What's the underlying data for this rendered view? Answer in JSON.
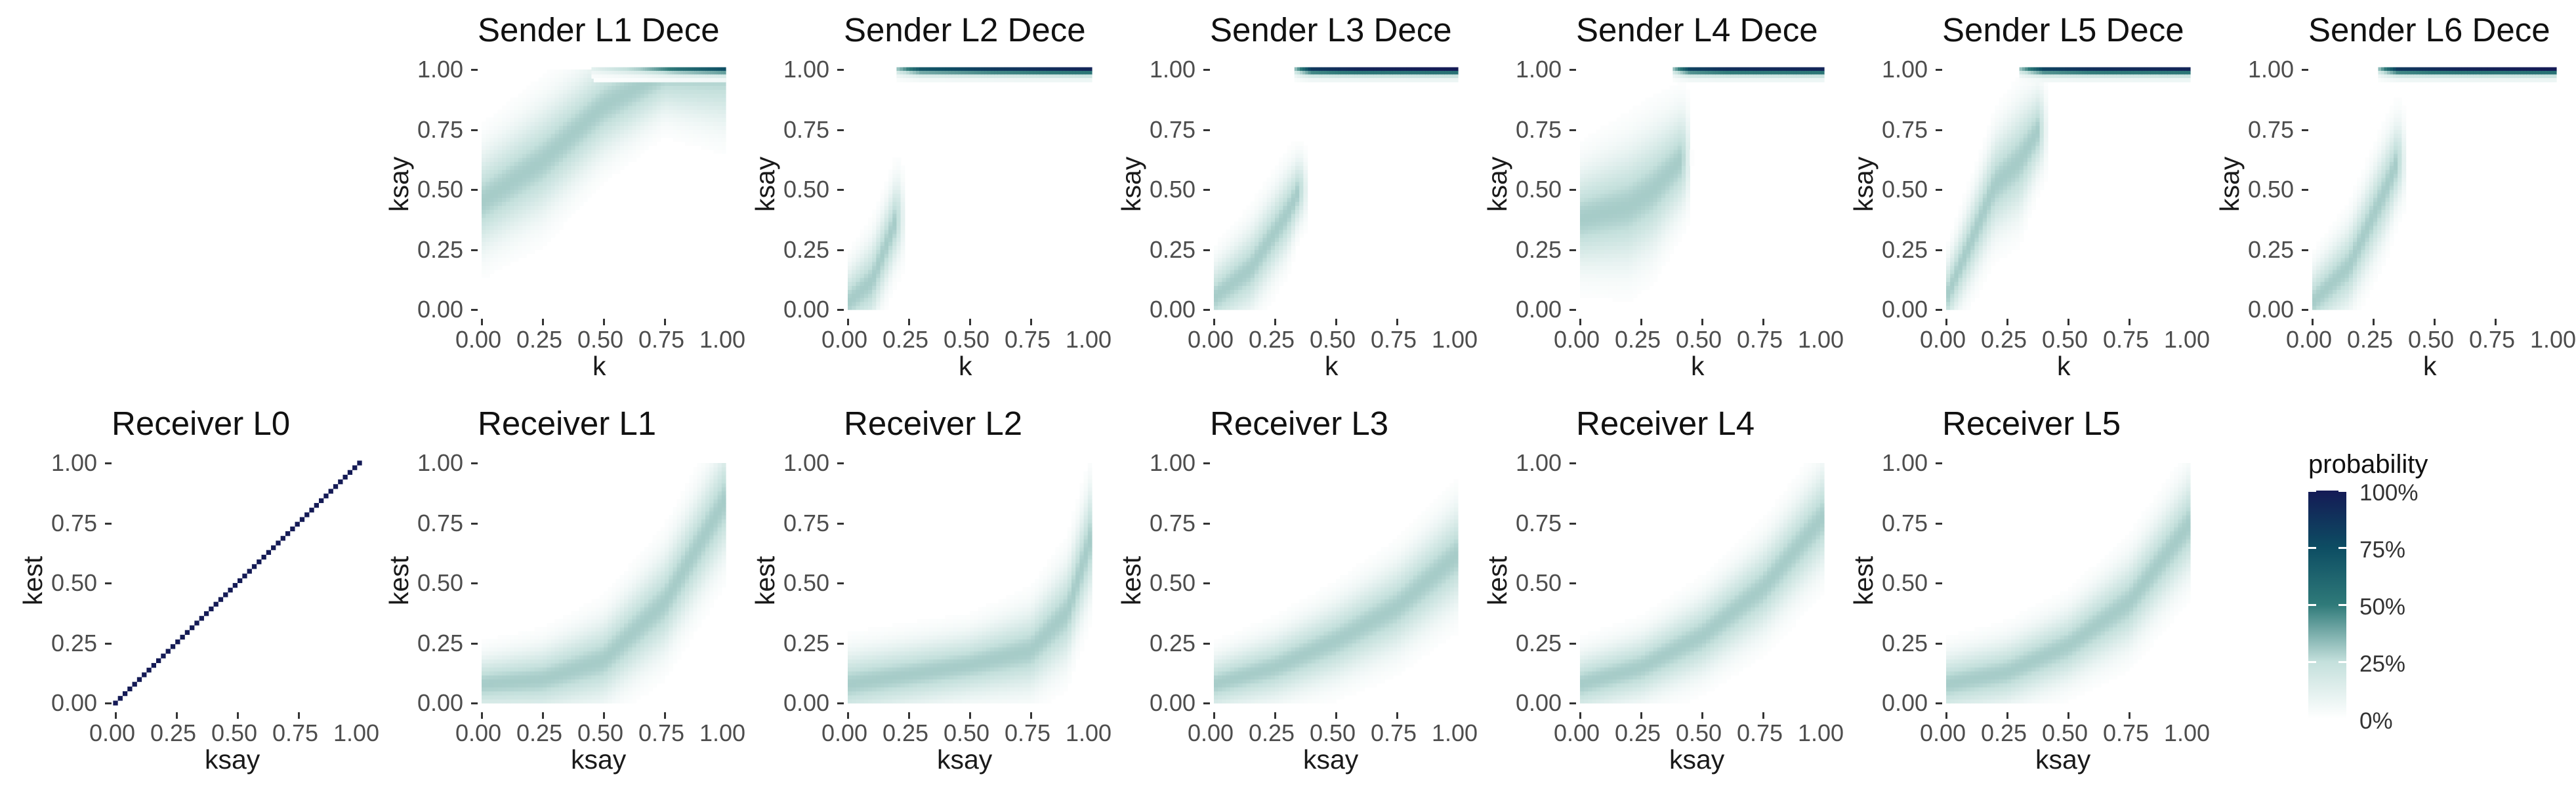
{
  "chart_data": [
    {
      "type": "heatmap",
      "title": "Sender L1 Dece",
      "xlabel": "k",
      "ylabel": "ksay",
      "x_ticks": [
        "0.00",
        "0.25",
        "0.50",
        "0.75",
        "1.00"
      ],
      "y_ticks": [
        "0.00",
        "0.25",
        "0.50",
        "0.75",
        "1.00"
      ],
      "xlim": [
        0,
        1
      ],
      "ylim": [
        0,
        1
      ],
      "ridge": [
        [
          0.0,
          0.45,
          0.18
        ],
        [
          0.25,
          0.62,
          0.2
        ],
        [
          0.5,
          0.85,
          0.18
        ],
        [
          0.75,
          0.99,
          0.15
        ],
        [
          1.0,
          1.0,
          0.2
        ]
      ],
      "top_band": {
        "x_from": 0.45,
        "x_to": 1.0,
        "peak": [
          [
            0.45,
            0.12
          ],
          [
            0.65,
            0.3
          ],
          [
            0.8,
            0.55
          ],
          [
            1.0,
            0.75
          ]
        ]
      }
    },
    {
      "type": "heatmap",
      "title": "Sender L2 Dece",
      "xlabel": "k",
      "ylabel": "ksay",
      "x_ticks": [
        "0.00",
        "0.25",
        "0.50",
        "0.75",
        "1.00"
      ],
      "y_ticks": [
        "0.00",
        "0.25",
        "0.50",
        "0.75",
        "1.00"
      ],
      "xlim": [
        0,
        1
      ],
      "ylim": [
        0,
        1
      ],
      "ridge": [
        [
          0.0,
          0.03,
          0.12
        ],
        [
          0.1,
          0.12,
          0.15
        ],
        [
          0.2,
          0.38,
          0.15
        ]
      ],
      "ridge_x_max": 0.2,
      "top_band": {
        "x_from": 0.2,
        "x_to": 1.0,
        "peak": [
          [
            0.2,
            0.3
          ],
          [
            0.3,
            0.7
          ],
          [
            0.6,
            0.85
          ],
          [
            1.0,
            0.95
          ]
        ]
      }
    },
    {
      "type": "heatmap",
      "title": "Sender L3 Dece",
      "xlabel": "k",
      "ylabel": "ksay",
      "x_ticks": [
        "0.00",
        "0.25",
        "0.50",
        "0.75",
        "1.00"
      ],
      "y_ticks": [
        "0.00",
        "0.25",
        "0.50",
        "0.75",
        "1.00"
      ],
      "xlim": [
        0,
        1
      ],
      "ylim": [
        0,
        1
      ],
      "ridge": [
        [
          0.0,
          0.05,
          0.12
        ],
        [
          0.15,
          0.17,
          0.15
        ],
        [
          0.3,
          0.4,
          0.15
        ],
        [
          0.35,
          0.5,
          0.12
        ]
      ],
      "ridge_x_max": 0.35,
      "top_band": {
        "x_from": 0.33,
        "x_to": 1.0,
        "peak": [
          [
            0.33,
            0.3
          ],
          [
            0.4,
            0.85
          ],
          [
            0.6,
            0.95
          ],
          [
            1.0,
            1.0
          ]
        ]
      }
    },
    {
      "type": "heatmap",
      "title": "Sender L4 Dece",
      "xlabel": "k",
      "ylabel": "ksay",
      "x_ticks": [
        "0.00",
        "0.25",
        "0.50",
        "0.75",
        "1.00"
      ],
      "y_ticks": [
        "0.00",
        "0.25",
        "0.50",
        "0.75",
        "1.00"
      ],
      "xlim": [
        0,
        1
      ],
      "ylim": [
        0,
        1
      ],
      "ridge": [
        [
          0.0,
          0.38,
          0.18
        ],
        [
          0.2,
          0.43,
          0.22
        ],
        [
          0.3,
          0.5,
          0.22
        ],
        [
          0.42,
          0.63,
          0.18
        ]
      ],
      "ridge_x_max": 0.42,
      "top_band": {
        "x_from": 0.38,
        "x_to": 1.0,
        "peak": [
          [
            0.38,
            0.3
          ],
          [
            0.45,
            0.8
          ],
          [
            0.6,
            0.9
          ],
          [
            1.0,
            0.95
          ]
        ]
      }
    },
    {
      "type": "heatmap",
      "title": "Sender L5 Dece",
      "xlabel": "k",
      "ylabel": "ksay",
      "x_ticks": [
        "0.00",
        "0.25",
        "0.50",
        "0.75",
        "1.00"
      ],
      "y_ticks": [
        "0.00",
        "0.25",
        "0.50",
        "0.75",
        "1.00"
      ],
      "xlim": [
        0,
        1
      ],
      "ylim": [
        0,
        1
      ],
      "ridge": [
        [
          0.0,
          0.05,
          0.12
        ],
        [
          0.1,
          0.28,
          0.15
        ],
        [
          0.2,
          0.52,
          0.18
        ],
        [
          0.3,
          0.62,
          0.2
        ],
        [
          0.38,
          0.75,
          0.15
        ]
      ],
      "ridge_x_max": 0.38,
      "top_band": {
        "x_from": 0.3,
        "x_to": 1.0,
        "peak": [
          [
            0.3,
            0.3
          ],
          [
            0.4,
            0.8
          ],
          [
            0.6,
            0.9
          ],
          [
            1.0,
            0.95
          ]
        ]
      }
    },
    {
      "type": "heatmap",
      "title": "Sender L6 Dece",
      "xlabel": "k",
      "ylabel": "ksay",
      "x_ticks": [
        "0.00",
        "0.25",
        "0.50",
        "0.75",
        "1.00"
      ],
      "y_ticks": [
        "0.00",
        "0.25",
        "0.50",
        "0.75",
        "1.00"
      ],
      "xlim": [
        0,
        1
      ],
      "ylim": [
        0,
        1
      ],
      "ridge": [
        [
          0.0,
          0.03,
          0.12
        ],
        [
          0.15,
          0.18,
          0.15
        ],
        [
          0.3,
          0.5,
          0.17
        ],
        [
          0.35,
          0.62,
          0.15
        ]
      ],
      "ridge_x_max": 0.35,
      "top_band": {
        "x_from": 0.27,
        "x_to": 1.0,
        "peak": [
          [
            0.27,
            0.3
          ],
          [
            0.35,
            0.85
          ],
          [
            0.6,
            0.95
          ],
          [
            1.0,
            1.0
          ]
        ]
      }
    },
    {
      "type": "heatmap",
      "title": "Receiver L0",
      "xlabel": "ksay",
      "ylabel": "kest",
      "x_ticks": [
        "0.00",
        "0.25",
        "0.50",
        "0.75",
        "1.00"
      ],
      "y_ticks": [
        "0.00",
        "0.25",
        "0.50",
        "0.75",
        "1.00"
      ],
      "xlim": [
        0,
        1
      ],
      "ylim": [
        0,
        1
      ],
      "diagonal": {
        "probability": 1.0
      }
    },
    {
      "type": "heatmap",
      "title": "Receiver L1",
      "xlabel": "ksay",
      "ylabel": "kest",
      "x_ticks": [
        "0.00",
        "0.25",
        "0.50",
        "0.75",
        "1.00"
      ],
      "y_ticks": [
        "0.00",
        "0.25",
        "0.50",
        "0.75",
        "1.00"
      ],
      "xlim": [
        0,
        1
      ],
      "ylim": [
        0,
        1
      ],
      "ridge": [
        [
          0.0,
          0.08,
          0.1
        ],
        [
          0.25,
          0.1,
          0.12
        ],
        [
          0.5,
          0.18,
          0.15
        ],
        [
          0.75,
          0.42,
          0.18
        ],
        [
          1.0,
          0.85,
          0.2
        ]
      ]
    },
    {
      "type": "heatmap",
      "title": "Receiver L2",
      "xlabel": "ksay",
      "ylabel": "kest",
      "x_ticks": [
        "0.00",
        "0.25",
        "0.50",
        "0.75",
        "1.00"
      ],
      "y_ticks": [
        "0.00",
        "0.25",
        "0.50",
        "0.75",
        "1.00"
      ],
      "xlim": [
        0,
        1
      ],
      "ylim": [
        0,
        1
      ],
      "ridge": [
        [
          0.0,
          0.08,
          0.12
        ],
        [
          0.25,
          0.12,
          0.12
        ],
        [
          0.5,
          0.16,
          0.12
        ],
        [
          0.75,
          0.22,
          0.15
        ],
        [
          0.9,
          0.38,
          0.18
        ],
        [
          1.0,
          0.7,
          0.2
        ]
      ]
    },
    {
      "type": "heatmap",
      "title": "Receiver L3",
      "xlabel": "ksay",
      "ylabel": "kest",
      "x_ticks": [
        "0.00",
        "0.25",
        "0.50",
        "0.75",
        "1.00"
      ],
      "y_ticks": [
        "0.00",
        "0.25",
        "0.50",
        "0.75",
        "1.00"
      ],
      "xlim": [
        0,
        1
      ],
      "ylim": [
        0,
        1
      ],
      "ridge": [
        [
          0.0,
          0.08,
          0.1
        ],
        [
          0.25,
          0.15,
          0.12
        ],
        [
          0.5,
          0.26,
          0.14
        ],
        [
          0.75,
          0.4,
          0.16
        ],
        [
          1.0,
          0.62,
          0.18
        ]
      ]
    },
    {
      "type": "heatmap",
      "title": "Receiver L4",
      "xlabel": "ksay",
      "ylabel": "kest",
      "x_ticks": [
        "0.00",
        "0.25",
        "0.50",
        "0.75",
        "1.00"
      ],
      "y_ticks": [
        "0.00",
        "0.25",
        "0.50",
        "0.75",
        "1.00"
      ],
      "xlim": [
        0,
        1
      ],
      "ylim": [
        0,
        1
      ],
      "ridge": [
        [
          0.0,
          0.08,
          0.11
        ],
        [
          0.25,
          0.15,
          0.12
        ],
        [
          0.5,
          0.28,
          0.14
        ],
        [
          0.75,
          0.48,
          0.16
        ],
        [
          1.0,
          0.78,
          0.18
        ]
      ]
    },
    {
      "type": "heatmap",
      "title": "Receiver L5",
      "xlabel": "ksay",
      "ylabel": "kest",
      "x_ticks": [
        "0.00",
        "0.25",
        "0.50",
        "0.75",
        "1.00"
      ],
      "y_ticks": [
        "0.00",
        "0.25",
        "0.50",
        "0.75",
        "1.00"
      ],
      "xlim": [
        0,
        1
      ],
      "ylim": [
        0,
        1
      ],
      "ridge": [
        [
          0.0,
          0.08,
          0.11
        ],
        [
          0.25,
          0.13,
          0.12
        ],
        [
          0.5,
          0.24,
          0.13
        ],
        [
          0.75,
          0.42,
          0.16
        ],
        [
          1.0,
          0.75,
          0.18
        ]
      ]
    }
  ],
  "legend": {
    "title": "probability",
    "labels": [
      "100%",
      "75%",
      "50%",
      "25%",
      "0%"
    ],
    "values": [
      1.0,
      0.75,
      0.5,
      0.25,
      0.0
    ],
    "colors": [
      "#ffffff",
      "#c4e0dc",
      "#2f7a79",
      "#0d4d63",
      "#141a55"
    ]
  }
}
